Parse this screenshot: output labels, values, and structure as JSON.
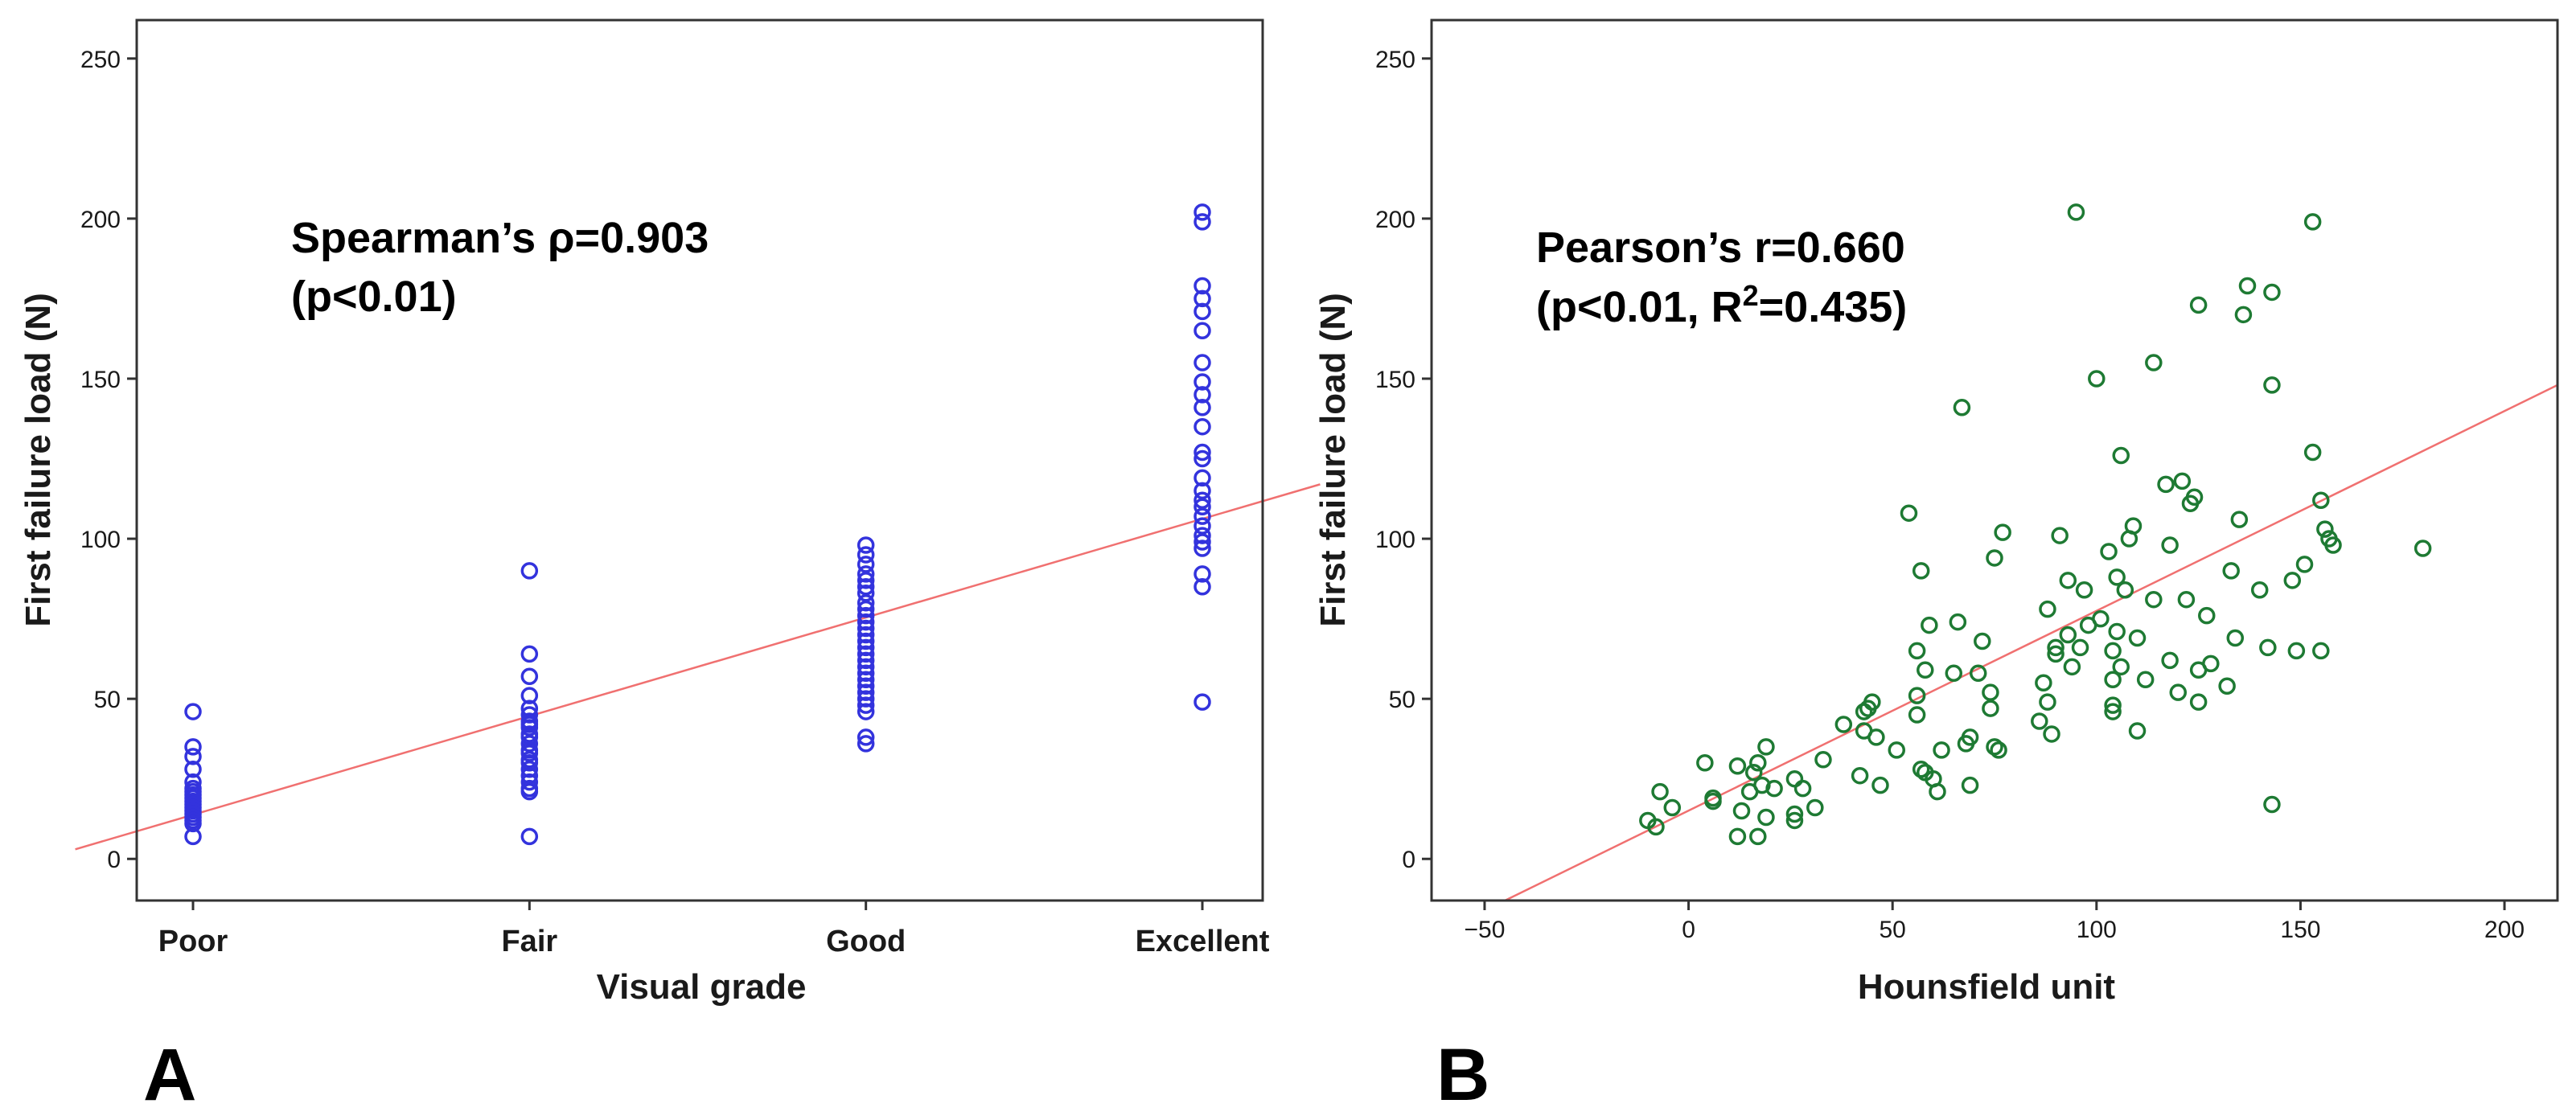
{
  "chart_data": [
    {
      "type": "scatter",
      "panel_label": "A",
      "xlabel": "Visual grade",
      "ylabel": "First failure load (N)",
      "categories": [
        "Poor",
        "Fair",
        "Good",
        "Excellent"
      ],
      "ylim": [
        -13,
        262
      ],
      "yticks": [
        "0",
        "50",
        "100",
        "150",
        "200",
        "250"
      ],
      "annotation": [
        "Spearman’s ρ=0.903",
        "(p<0.01)"
      ],
      "colors": {
        "marker": "#3333dd",
        "fit_line": "#f07070"
      },
      "fit_line": {
        "x": [
          -0.35,
          3.35
        ],
        "y": [
          3,
          117
        ]
      },
      "series": [
        {
          "name": "Poor",
          "values": [
            46,
            35,
            32,
            28,
            24,
            22,
            21,
            20,
            19,
            18,
            17,
            16,
            15,
            14,
            13,
            12,
            11,
            7
          ]
        },
        {
          "name": "Fair",
          "values": [
            90,
            64,
            57,
            51,
            47,
            45,
            43,
            42,
            41,
            39,
            38,
            36,
            34,
            33,
            31,
            30,
            28,
            26,
            24,
            22,
            21,
            7
          ]
        },
        {
          "name": "Good",
          "values": [
            98,
            95,
            92,
            89,
            87,
            85,
            83,
            80,
            78,
            76,
            74,
            72,
            70,
            68,
            66,
            64,
            62,
            60,
            58,
            56,
            54,
            52,
            50,
            48,
            46,
            38,
            36
          ]
        },
        {
          "name": "Excellent",
          "values": [
            202,
            199,
            179,
            175,
            171,
            165,
            155,
            149,
            145,
            141,
            135,
            127,
            125,
            119,
            115,
            112,
            110,
            107,
            104,
            101,
            99,
            97,
            89,
            85,
            49
          ]
        }
      ]
    },
    {
      "type": "scatter",
      "panel_label": "B",
      "xlabel": "Hounsfield unit",
      "ylabel": "First failure load (N)",
      "xlim": [
        -63,
        213
      ],
      "ylim": [
        -13,
        262
      ],
      "xticks": [
        "−50",
        "0",
        "50",
        "100",
        "150",
        "200"
      ],
      "yticks": [
        "0",
        "50",
        "100",
        "150",
        "200",
        "250"
      ],
      "annotation": [
        "Pearson’s r=0.660",
        "(p<0.01, R",
        "2",
        "=0.435)"
      ],
      "colors": {
        "marker": "#1e7a33",
        "fit_line": "#f07070"
      },
      "fit_line": {
        "x": [
          -45,
          213
        ],
        "y": [
          -13,
          148
        ]
      },
      "points": [
        [
          -10,
          12
        ],
        [
          -8,
          10
        ],
        [
          -7,
          21
        ],
        [
          -4,
          16
        ],
        [
          4,
          30
        ],
        [
          6,
          18
        ],
        [
          6,
          19
        ],
        [
          12,
          29
        ],
        [
          12,
          7
        ],
        [
          13,
          15
        ],
        [
          15,
          21
        ],
        [
          16,
          27
        ],
        [
          17,
          30
        ],
        [
          17,
          7
        ],
        [
          18,
          23
        ],
        [
          19,
          35
        ],
        [
          19,
          13
        ],
        [
          21,
          22
        ],
        [
          26,
          25
        ],
        [
          26,
          14
        ],
        [
          26,
          12
        ],
        [
          28,
          22
        ],
        [
          31,
          16
        ],
        [
          33,
          31
        ],
        [
          38,
          42
        ],
        [
          42,
          26
        ],
        [
          43,
          46
        ],
        [
          43,
          40
        ],
        [
          44,
          47
        ],
        [
          45,
          49
        ],
        [
          46,
          38
        ],
        [
          47,
          23
        ],
        [
          51,
          34
        ],
        [
          54,
          108
        ],
        [
          56,
          45
        ],
        [
          56,
          51
        ],
        [
          56,
          65
        ],
        [
          57,
          90
        ],
        [
          57,
          28
        ],
        [
          58,
          59
        ],
        [
          58,
          27
        ],
        [
          59,
          73
        ],
        [
          60,
          25
        ],
        [
          61,
          21
        ],
        [
          62,
          34
        ],
        [
          65,
          58
        ],
        [
          66,
          74
        ],
        [
          67,
          141
        ],
        [
          68,
          36
        ],
        [
          69,
          38
        ],
        [
          69,
          23
        ],
        [
          71,
          58
        ],
        [
          72,
          68
        ],
        [
          74,
          52
        ],
        [
          74,
          47
        ],
        [
          75,
          35
        ],
        [
          75,
          94
        ],
        [
          76,
          34
        ],
        [
          77,
          102
        ],
        [
          86,
          43
        ],
        [
          87,
          55
        ],
        [
          88,
          78
        ],
        [
          88,
          49
        ],
        [
          89,
          39
        ],
        [
          90,
          66
        ],
        [
          90,
          64
        ],
        [
          91,
          101
        ],
        [
          93,
          87
        ],
        [
          93,
          70
        ],
        [
          94,
          60
        ],
        [
          95,
          202
        ],
        [
          96,
          66
        ],
        [
          97,
          84
        ],
        [
          98,
          73
        ],
        [
          100,
          150
        ],
        [
          101,
          75
        ],
        [
          103,
          96
        ],
        [
          104,
          65
        ],
        [
          104,
          56
        ],
        [
          104,
          48
        ],
        [
          104,
          46
        ],
        [
          105,
          71
        ],
        [
          105,
          88
        ],
        [
          106,
          126
        ],
        [
          106,
          60
        ],
        [
          107,
          84
        ],
        [
          108,
          100
        ],
        [
          109,
          104
        ],
        [
          110,
          69
        ],
        [
          110,
          40
        ],
        [
          112,
          56
        ],
        [
          114,
          155
        ],
        [
          114,
          81
        ],
        [
          117,
          117
        ],
        [
          118,
          98
        ],
        [
          118,
          62
        ],
        [
          120,
          52
        ],
        [
          121,
          118
        ],
        [
          122,
          81
        ],
        [
          123,
          111
        ],
        [
          124,
          113
        ],
        [
          125,
          173
        ],
        [
          125,
          49
        ],
        [
          125,
          59
        ],
        [
          127,
          76
        ],
        [
          128,
          61
        ],
        [
          132,
          54
        ],
        [
          133,
          90
        ],
        [
          134,
          69
        ],
        [
          135,
          106
        ],
        [
          136,
          170
        ],
        [
          137,
          179
        ],
        [
          140,
          84
        ],
        [
          142,
          66
        ],
        [
          143,
          177
        ],
        [
          143,
          148
        ],
        [
          143,
          17
        ],
        [
          148,
          87
        ],
        [
          149,
          65
        ],
        [
          151,
          92
        ],
        [
          153,
          127
        ],
        [
          153,
          199
        ],
        [
          155,
          112
        ],
        [
          155,
          65
        ],
        [
          156,
          103
        ],
        [
          157,
          100
        ],
        [
          158,
          98
        ],
        [
          180,
          97
        ]
      ]
    }
  ]
}
